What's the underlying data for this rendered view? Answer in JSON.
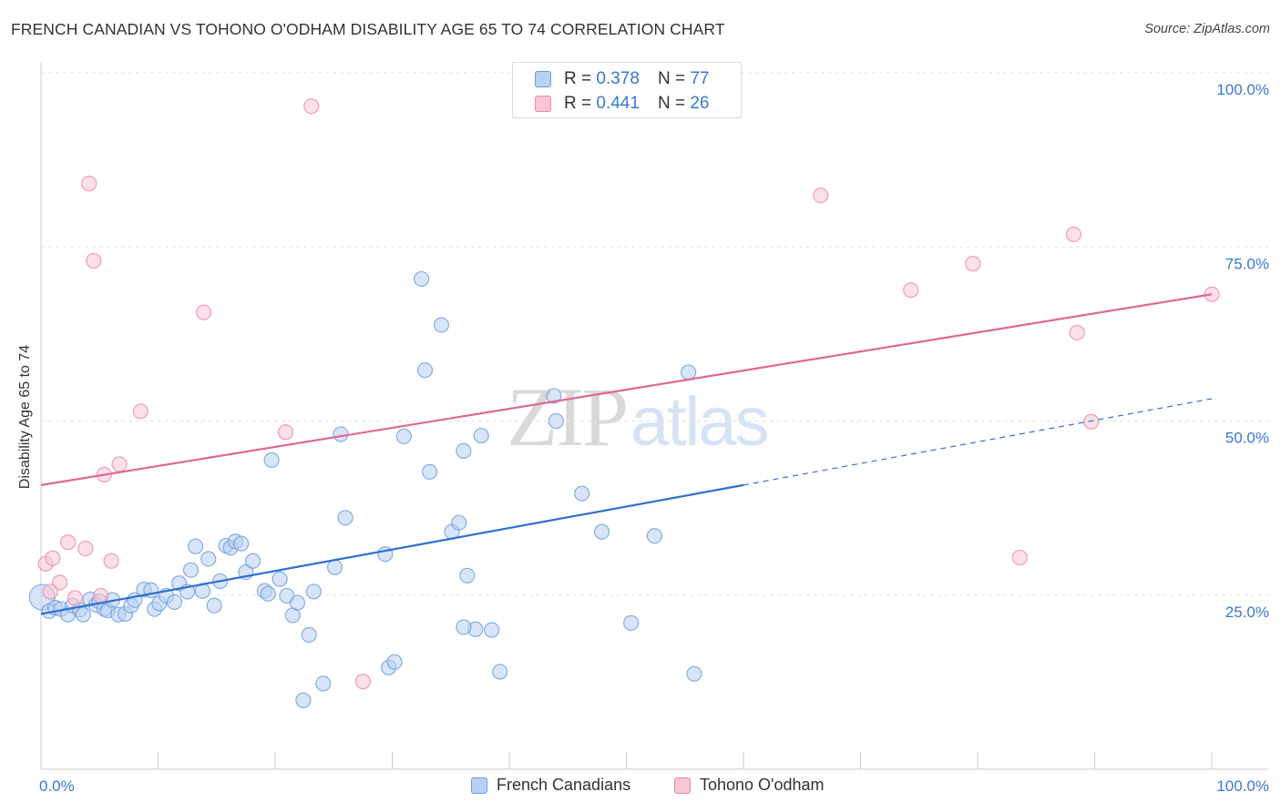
{
  "header": {
    "title": "FRENCH CANADIAN VS TOHONO O'ODHAM DISABILITY AGE 65 TO 74 CORRELATION CHART",
    "source": "Source: ZipAtlas.com"
  },
  "watermark": {
    "zip": "ZIP",
    "atlas": "atlas"
  },
  "legend": {
    "r_label": "R =",
    "n_label": "N =",
    "rows": [
      {
        "r": "0.378",
        "n": "77"
      },
      {
        "r": "0.441",
        "n": "26"
      }
    ]
  },
  "bottom_legend": [
    "French Canadians",
    "Tohono O'odham"
  ],
  "colors": {
    "blue_fill": "#b8d0f2",
    "blue_stroke": "#6c9cdb",
    "blue_line": "#2f70d0",
    "pink_fill": "#f9c6d4",
    "pink_stroke": "#e98aa7",
    "pink_line": "#e0688f",
    "tick_label": "#3a78d0",
    "grid": "#e2e2e2"
  },
  "chart_data": {
    "type": "scatter",
    "title": "FRENCH CANADIAN VS TOHONO O'ODHAM DISABILITY AGE 65 TO 74 CORRELATION CHART",
    "xlabel": "",
    "ylabel": "Disability Age 65 to 74",
    "xlim": [
      0,
      100
    ],
    "ylim": [
      0,
      100
    ],
    "x_tick_labels": [
      {
        "value": 0,
        "label": "0.0%"
      },
      {
        "value": 100,
        "label": "100.0%"
      }
    ],
    "y_tick_labels": [
      {
        "value": 25,
        "label": "25.0%"
      },
      {
        "value": 50,
        "label": "50.0%"
      },
      {
        "value": 75,
        "label": "75.0%"
      },
      {
        "value": 100,
        "label": "100.0%"
      }
    ],
    "series": [
      {
        "name": "French Canadians",
        "r": 0.378,
        "n": 77,
        "trend": {
          "x0": 0,
          "y0": 22.3,
          "x1": 60,
          "y1": 40.8,
          "dash_x1": 100,
          "dash_y1": 53.2
        },
        "points": [
          [
            0.1,
            24.7
          ],
          [
            0.7,
            22.7
          ],
          [
            1.2,
            23.2
          ],
          [
            1.7,
            23.0
          ],
          [
            2.3,
            22.2
          ],
          [
            2.7,
            23.5
          ],
          [
            3.3,
            22.9
          ],
          [
            3.6,
            22.2
          ],
          [
            4.2,
            24.4
          ],
          [
            4.7,
            23.6
          ],
          [
            5.0,
            24.1
          ],
          [
            5.4,
            23.0
          ],
          [
            5.7,
            22.8
          ],
          [
            6.1,
            24.3
          ],
          [
            6.6,
            22.2
          ],
          [
            7.2,
            22.3
          ],
          [
            7.7,
            23.5
          ],
          [
            8.0,
            24.3
          ],
          [
            8.8,
            25.8
          ],
          [
            9.4,
            25.7
          ],
          [
            9.7,
            23.0
          ],
          [
            10.1,
            23.8
          ],
          [
            10.7,
            24.9
          ],
          [
            11.4,
            24.0
          ],
          [
            11.8,
            26.7
          ],
          [
            12.5,
            25.5
          ],
          [
            12.8,
            28.6
          ],
          [
            13.2,
            32.0
          ],
          [
            13.8,
            25.6
          ],
          [
            14.3,
            30.2
          ],
          [
            14.8,
            23.5
          ],
          [
            15.3,
            27.0
          ],
          [
            15.8,
            32.1
          ],
          [
            16.2,
            31.8
          ],
          [
            16.6,
            32.7
          ],
          [
            17.1,
            32.4
          ],
          [
            17.5,
            28.3
          ],
          [
            18.1,
            29.9
          ],
          [
            19.1,
            25.6
          ],
          [
            19.4,
            25.2
          ],
          [
            19.7,
            44.4
          ],
          [
            20.4,
            27.3
          ],
          [
            21.0,
            24.9
          ],
          [
            21.5,
            22.1
          ],
          [
            21.9,
            23.9
          ],
          [
            22.4,
            9.9
          ],
          [
            22.9,
            19.3
          ],
          [
            23.3,
            25.5
          ],
          [
            24.1,
            12.3
          ],
          [
            25.1,
            29.0
          ],
          [
            25.6,
            48.1
          ],
          [
            26.0,
            36.1
          ],
          [
            29.4,
            30.9
          ],
          [
            29.7,
            14.6
          ],
          [
            30.2,
            15.4
          ],
          [
            31.0,
            47.8
          ],
          [
            32.5,
            70.4
          ],
          [
            32.8,
            57.3
          ],
          [
            33.2,
            42.7
          ],
          [
            34.2,
            63.8
          ],
          [
            35.1,
            34.1
          ],
          [
            35.7,
            35.4
          ],
          [
            36.1,
            45.7
          ],
          [
            36.4,
            27.8
          ],
          [
            37.1,
            20.1
          ],
          [
            37.6,
            47.9
          ],
          [
            38.5,
            20.0
          ],
          [
            39.2,
            14.0
          ],
          [
            43.8,
            53.6
          ],
          [
            44.0,
            50.0
          ],
          [
            46.2,
            39.6
          ],
          [
            47.9,
            34.1
          ],
          [
            50.4,
            21.0
          ],
          [
            52.4,
            33.5
          ],
          [
            55.3,
            57.0
          ],
          [
            55.8,
            13.7
          ],
          [
            36.1,
            20.4
          ]
        ]
      },
      {
        "name": "Tohono O'odham",
        "r": 0.441,
        "n": 26,
        "trend": {
          "x0": 0,
          "y0": 40.8,
          "x1": 100,
          "y1": 68.2
        },
        "points": [
          [
            0.4,
            29.5
          ],
          [
            1.0,
            30.3
          ],
          [
            1.6,
            26.8
          ],
          [
            2.3,
            32.6
          ],
          [
            2.9,
            24.6
          ],
          [
            3.8,
            31.7
          ],
          [
            4.1,
            84.1
          ],
          [
            4.5,
            73.0
          ],
          [
            5.1,
            24.9
          ],
          [
            5.4,
            42.3
          ],
          [
            6.0,
            29.9
          ],
          [
            6.7,
            43.8
          ],
          [
            8.5,
            51.4
          ],
          [
            13.9,
            65.6
          ],
          [
            20.9,
            48.4
          ],
          [
            23.1,
            95.2
          ],
          [
            27.5,
            12.6
          ],
          [
            66.6,
            82.4
          ],
          [
            74.3,
            68.8
          ],
          [
            79.6,
            72.6
          ],
          [
            83.6,
            30.4
          ],
          [
            88.2,
            76.8
          ],
          [
            88.5,
            62.7
          ],
          [
            89.7,
            49.9
          ],
          [
            100.0,
            68.2
          ],
          [
            0.8,
            25.5
          ]
        ]
      }
    ]
  }
}
